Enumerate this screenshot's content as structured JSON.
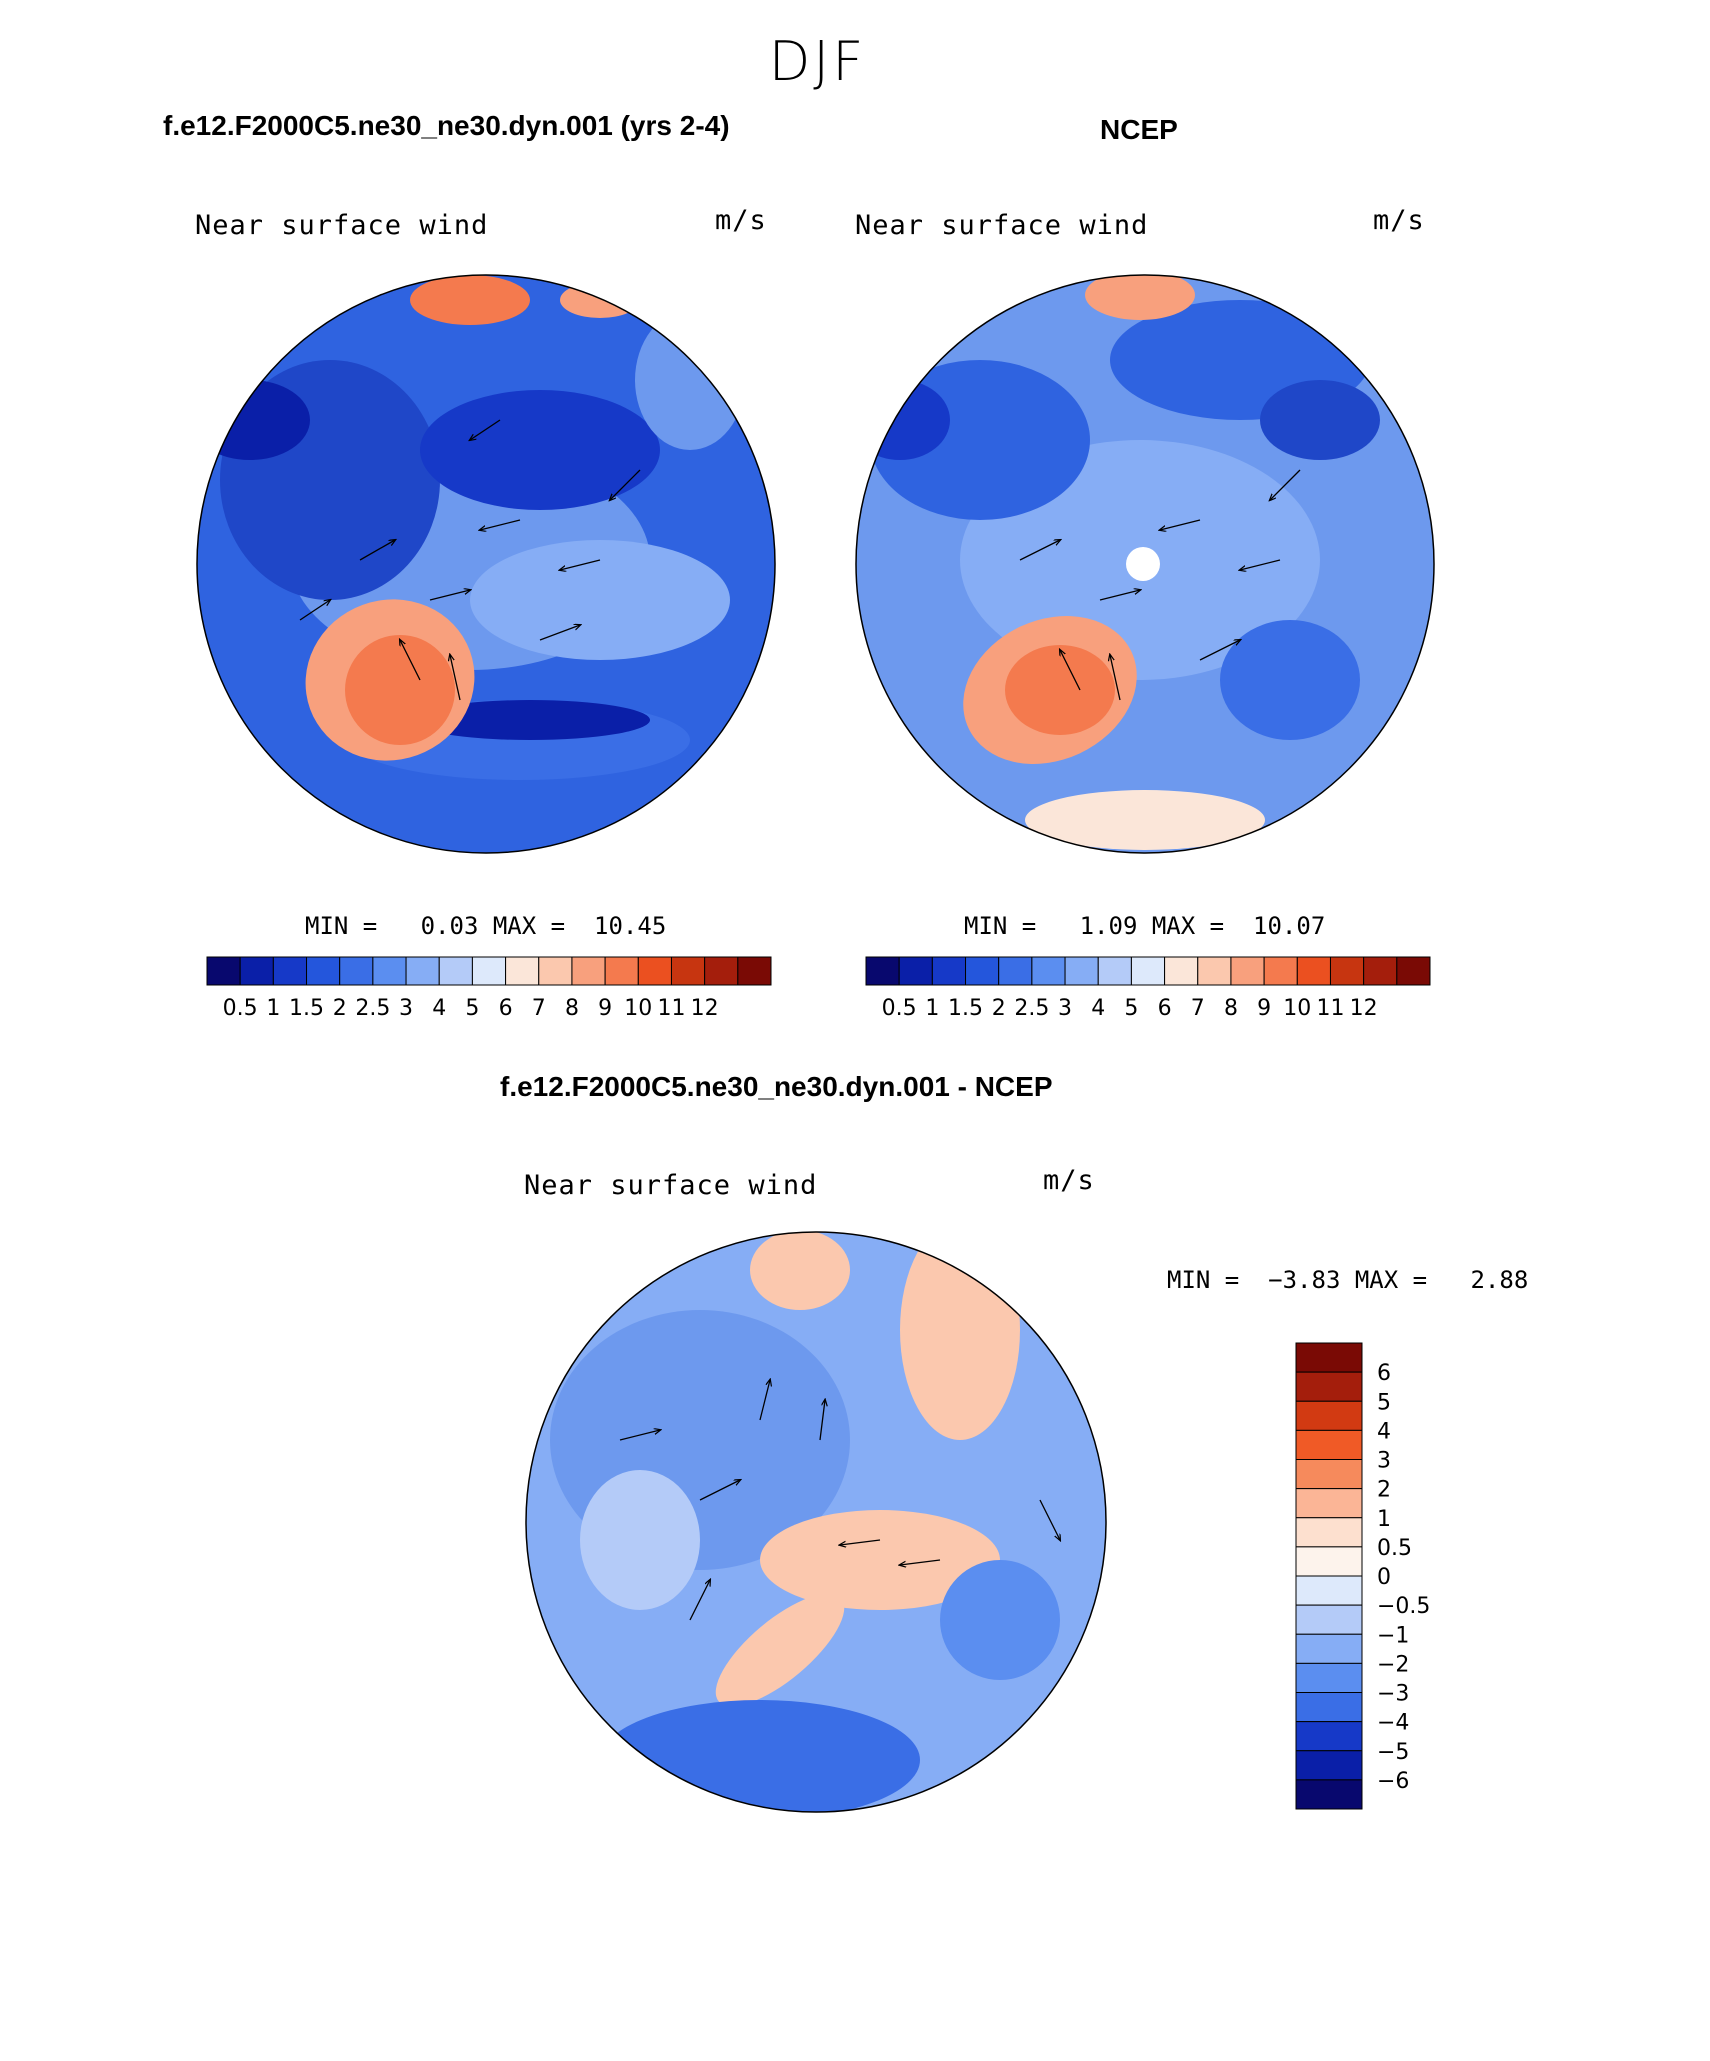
{
  "title": "DJF",
  "panels": [
    {
      "title": "f.e12.F2000C5.ne30_ne30.dyn.001 (yrs 2-4)",
      "variable": "Near surface wind",
      "units": "m/s",
      "min_label": "MIN =",
      "min_value": "0.03",
      "max_label": "MAX =",
      "max_value": "10.45"
    },
    {
      "title": "NCEP",
      "variable": "Near surface wind",
      "units": "m/s",
      "min_label": "MIN =",
      "min_value": "1.09",
      "max_label": "MAX =",
      "max_value": "10.07"
    },
    {
      "title": "f.e12.F2000C5.ne30_ne30.dyn.001 - NCEP",
      "variable": "Near surface wind",
      "units": "m/s",
      "min_label": "MIN =",
      "min_value": "−3.83",
      "max_label": "MAX =",
      "max_value": "2.88"
    }
  ],
  "colorbar_abs": {
    "labels": [
      "0.5",
      "1",
      "1.5",
      "2",
      "2.5",
      "3",
      "4",
      "5",
      "6",
      "7",
      "8",
      "9",
      "10",
      "11",
      "12"
    ],
    "colors": [
      "#08086e",
      "#0a1fa8",
      "#1639c8",
      "#2456dc",
      "#3a6ee6",
      "#5b8ef0",
      "#86adf5",
      "#b4cbf8",
      "#dde9fb",
      "#fbe6d9",
      "#fbc8ae",
      "#f8a07d",
      "#f47a4e",
      "#eb5020",
      "#c73510",
      "#a41e0c",
      "#7a0a05"
    ]
  },
  "colorbar_diff": {
    "labels": [
      "6",
      "5",
      "4",
      "3",
      "2",
      "1",
      "0.5",
      "0",
      "−0.5",
      "−1",
      "−2",
      "−3",
      "−4",
      "−5",
      "−6"
    ],
    "colors": [
      "#7a0a05",
      "#a41e0c",
      "#d23a12",
      "#f05a26",
      "#f68a5c",
      "#fbb596",
      "#fde0cf",
      "#fdf3ec",
      "#dde9fb",
      "#b4cbf8",
      "#86adf5",
      "#5b8ef0",
      "#3a6ee6",
      "#1639c8",
      "#0a1fa8",
      "#08086e"
    ]
  }
}
